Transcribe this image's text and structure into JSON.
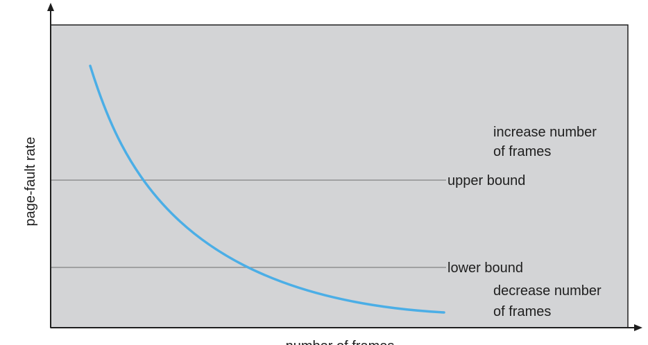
{
  "diagram": {
    "y_axis_label": "page-fault rate",
    "x_axis_label": "number of frames",
    "thresholds": {
      "upper": "upper bound",
      "lower": "lower bound"
    },
    "annotations": {
      "increase_line1": "increase number",
      "increase_line2": "of frames",
      "decrease_line1": "decrease number",
      "decrease_line2": "of frames"
    },
    "colors": {
      "plot_background": "#d3d4d6",
      "curve": "#4baee6",
      "threshold_lines": "#8f9091",
      "axes": "#1e1e1e"
    }
  }
}
